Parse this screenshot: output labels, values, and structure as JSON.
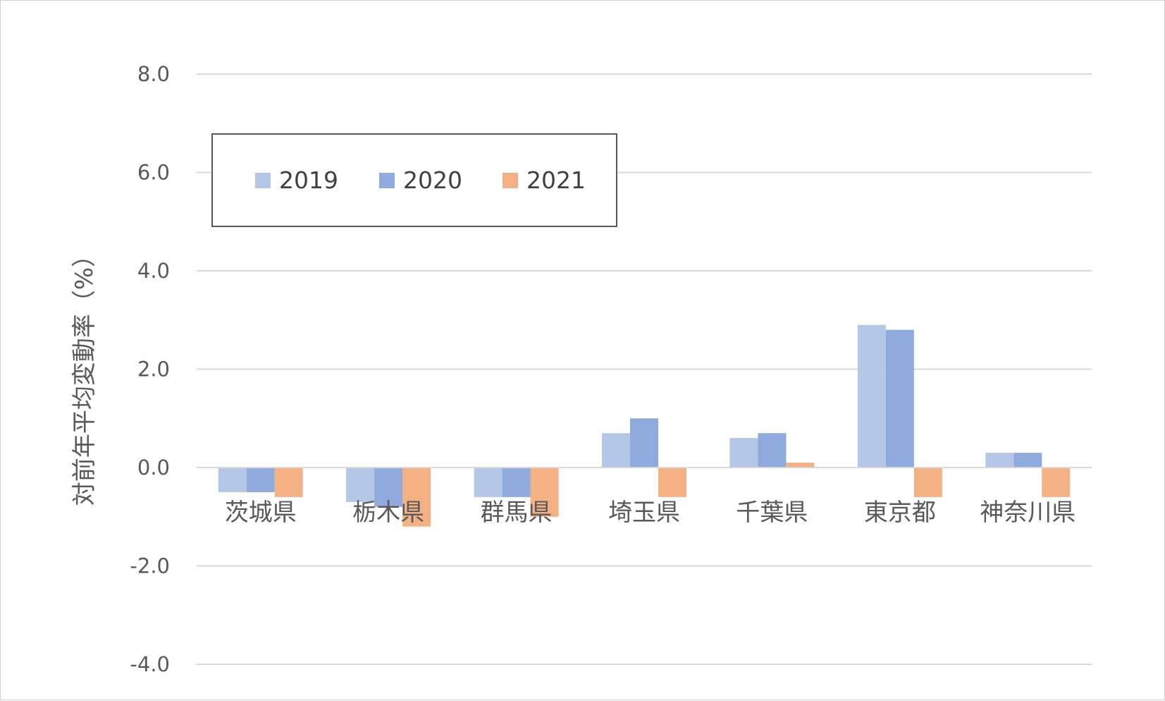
{
  "chart_data": {
    "type": "bar",
    "title": "",
    "xlabel": "",
    "ylabel": "対前年平均変動率（%）",
    "ylim": [
      -4.0,
      8.0
    ],
    "yticks": [
      "8.0",
      "6.0",
      "4.0",
      "2.0",
      "0.0",
      "-2.0",
      "-4.0"
    ],
    "grid": true,
    "legend_position": "top-left",
    "categories": [
      "茨城県",
      "栃木県",
      "群馬県",
      "埼玉県",
      "千葉県",
      "東京都",
      "神奈川県"
    ],
    "series": [
      {
        "name": "2019",
        "color": "#b4c7e7",
        "values": [
          -0.5,
          -0.7,
          -0.6,
          0.7,
          0.6,
          2.9,
          0.3
        ]
      },
      {
        "name": "2020",
        "color": "#8faadc",
        "values": [
          -0.5,
          -0.8,
          -0.6,
          1.0,
          0.7,
          2.8,
          0.3
        ]
      },
      {
        "name": "2021",
        "color": "#f4b183",
        "values": [
          -0.6,
          -1.2,
          -1.0,
          -0.6,
          0.1,
          -0.6,
          -0.6
        ]
      }
    ]
  }
}
